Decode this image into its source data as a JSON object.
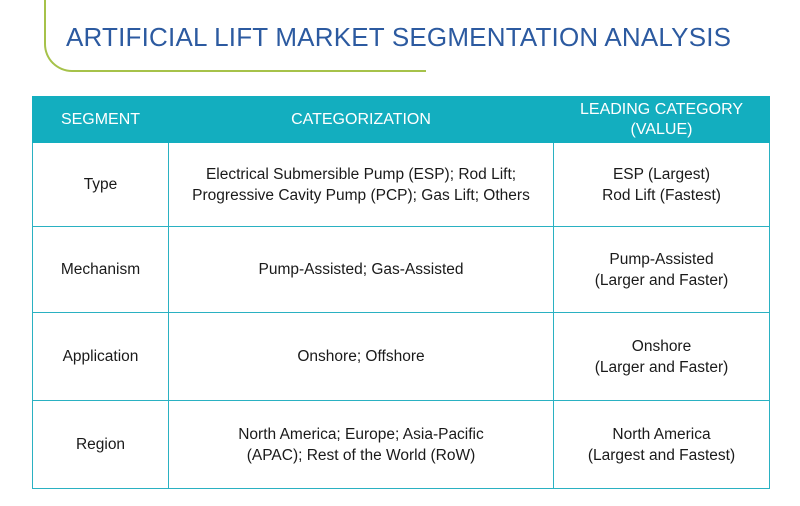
{
  "title": "ARTIFICIAL LIFT MARKET SEGMENTATION ANALYSIS",
  "table": {
    "headers": {
      "segment": "SEGMENT",
      "categorization": "CATEGORIZATION",
      "leading_line1": "LEADING CATEGORY",
      "leading_line2": "(VALUE)"
    },
    "rows": [
      {
        "segment": "Type",
        "categorization_line1": "Electrical Submersible Pump (ESP); Rod Lift;",
        "categorization_line2": "Progressive Cavity Pump (PCP); Gas Lift; Others",
        "leading_line1": "ESP (Largest)",
        "leading_line2": "Rod Lift (Fastest)"
      },
      {
        "segment": "Mechanism",
        "categorization_line1": "Pump-Assisted; Gas-Assisted",
        "categorization_line2": "",
        "leading_line1": "Pump-Assisted",
        "leading_line2": "(Larger and Faster)"
      },
      {
        "segment": "Application",
        "categorization_line1": "Onshore; Offshore",
        "categorization_line2": "",
        "leading_line1": "Onshore",
        "leading_line2": "(Larger and Faster)"
      },
      {
        "segment": "Region",
        "categorization_line1": "North America; Europe; Asia-Pacific",
        "categorization_line2": "(APAC); Rest of the World  (RoW)",
        "leading_line1": "North America",
        "leading_line2": "(Largest and Fastest)"
      }
    ]
  },
  "colors": {
    "title": "#2c5aa0",
    "header_bg": "#13aebf",
    "border": "#2ab1c2",
    "accent_line": "#a6c24a"
  }
}
